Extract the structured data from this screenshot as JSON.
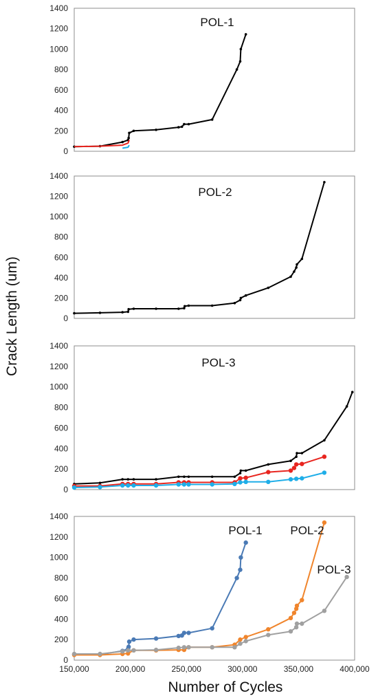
{
  "figure": {
    "ylabel": "Crack Length (um)",
    "xlabel": "Number of Cycles"
  },
  "chart_data": [
    {
      "type": "line",
      "title": "POL-1",
      "ylim": [
        0,
        1400
      ],
      "yticks": [
        "0",
        "200",
        "400",
        "600",
        "800",
        "1000",
        "1200",
        "1400"
      ],
      "xlim": [
        150000,
        400000
      ],
      "series": [
        {
          "color": "#000000",
          "marker": "small",
          "points": [
            [
              150000,
              45
            ],
            [
              173000,
              50
            ],
            [
              193000,
              90
            ],
            [
              198000,
              110
            ],
            [
              198500,
              130
            ],
            [
              199000,
              180
            ],
            [
              203000,
              200
            ],
            [
              223000,
              210
            ],
            [
              243000,
              235
            ],
            [
              246000,
              240
            ],
            [
              248000,
              265
            ],
            [
              252000,
              265
            ],
            [
              273000,
              310
            ],
            [
              295000,
              800
            ],
            [
              298000,
              880
            ],
            [
              298500,
              1000
            ],
            [
              303000,
              1145
            ]
          ]
        },
        {
          "color": "#e8251f",
          "marker": "none",
          "points": [
            [
              150000,
              45
            ],
            [
              173000,
              50
            ],
            [
              193000,
              60
            ],
            [
              198000,
              80
            ],
            [
              199000,
              110
            ]
          ]
        },
        {
          "color": "#1faee8",
          "marker": "none",
          "points": [
            [
              193000,
              30
            ],
            [
              198000,
              40
            ],
            [
              199000,
              60
            ]
          ]
        }
      ]
    },
    {
      "type": "line",
      "title": "POL-2",
      "ylim": [
        0,
        1400
      ],
      "yticks": [
        "0",
        "200",
        "400",
        "600",
        "800",
        "1000",
        "1200",
        "1400"
      ],
      "xlim": [
        150000,
        400000
      ],
      "series": [
        {
          "color": "#000000",
          "marker": "small",
          "points": [
            [
              150000,
              50
            ],
            [
              173000,
              55
            ],
            [
              193000,
              60
            ],
            [
              198000,
              65
            ],
            [
              198500,
              90
            ],
            [
              203000,
              95
            ],
            [
              223000,
              95
            ],
            [
              243000,
              95
            ],
            [
              248000,
              100
            ],
            [
              248500,
              120
            ],
            [
              252000,
              125
            ],
            [
              273000,
              125
            ],
            [
              293000,
              150
            ],
            [
              298000,
              180
            ],
            [
              298500,
              200
            ],
            [
              303000,
              225
            ],
            [
              323000,
              300
            ],
            [
              343000,
              410
            ],
            [
              346000,
              460
            ],
            [
              348000,
              500
            ],
            [
              348500,
              530
            ],
            [
              353000,
              585
            ],
            [
              373000,
              1340
            ]
          ]
        }
      ]
    },
    {
      "type": "line",
      "title": "POL-3",
      "ylim": [
        0,
        1400
      ],
      "yticks": [
        "0",
        "200",
        "400",
        "600",
        "800",
        "1000",
        "1200",
        "1400"
      ],
      "xlim": [
        150000,
        400000
      ],
      "series": [
        {
          "color": "#000000",
          "marker": "small",
          "points": [
            [
              150000,
              55
            ],
            [
              173000,
              65
            ],
            [
              193000,
              100
            ],
            [
              198000,
              100
            ],
            [
              203000,
              100
            ],
            [
              223000,
              100
            ],
            [
              243000,
              125
            ],
            [
              248000,
              125
            ],
            [
              252000,
              125
            ],
            [
              273000,
              125
            ],
            [
              293000,
              125
            ],
            [
              298000,
              160
            ],
            [
              298500,
              185
            ],
            [
              303000,
              185
            ],
            [
              323000,
              245
            ],
            [
              343000,
              280
            ],
            [
              348000,
              320
            ],
            [
              348500,
              355
            ],
            [
              353000,
              355
            ],
            [
              373000,
              480
            ],
            [
              393000,
              810
            ],
            [
              398000,
              950
            ]
          ]
        },
        {
          "color": "#e8251f",
          "marker": "dot",
          "points": [
            [
              150000,
              35
            ],
            [
              173000,
              35
            ],
            [
              193000,
              55
            ],
            [
              198000,
              55
            ],
            [
              203000,
              55
            ],
            [
              223000,
              55
            ],
            [
              243000,
              70
            ],
            [
              248000,
              70
            ],
            [
              252000,
              70
            ],
            [
              273000,
              70
            ],
            [
              293000,
              70
            ],
            [
              298000,
              110
            ],
            [
              303000,
              115
            ],
            [
              323000,
              170
            ],
            [
              343000,
              185
            ],
            [
              346000,
              210
            ],
            [
              348000,
              245
            ],
            [
              353000,
              250
            ],
            [
              373000,
              320
            ]
          ]
        },
        {
          "color": "#1faee8",
          "marker": "dot",
          "points": [
            [
              150000,
              20
            ],
            [
              173000,
              25
            ],
            [
              193000,
              40
            ],
            [
              198000,
              40
            ],
            [
              203000,
              40
            ],
            [
              223000,
              40
            ],
            [
              243000,
              50
            ],
            [
              248000,
              50
            ],
            [
              252000,
              50
            ],
            [
              273000,
              50
            ],
            [
              293000,
              55
            ],
            [
              298000,
              70
            ],
            [
              303000,
              75
            ],
            [
              323000,
              75
            ],
            [
              343000,
              100
            ],
            [
              348000,
              105
            ],
            [
              353000,
              110
            ],
            [
              373000,
              165
            ]
          ]
        }
      ]
    },
    {
      "type": "line",
      "title": "",
      "ylim": [
        0,
        1400
      ],
      "yticks": [
        "0",
        "200",
        "400",
        "600",
        "800",
        "1000",
        "1200",
        "1400"
      ],
      "xlim": [
        150000,
        400000
      ],
      "xticks": [
        "150,000",
        "200,000",
        "250,000",
        "300,000",
        "350,000",
        "400,000"
      ],
      "series": [
        {
          "name": "POL-1",
          "color": "#4a7ab5",
          "marker": "dot",
          "points": [
            [
              150000,
              55
            ],
            [
              173000,
              55
            ],
            [
              193000,
              90
            ],
            [
              198000,
              110
            ],
            [
              198500,
              130
            ],
            [
              199000,
              180
            ],
            [
              203000,
              200
            ],
            [
              223000,
              210
            ],
            [
              243000,
              235
            ],
            [
              246000,
              240
            ],
            [
              248000,
              265
            ],
            [
              252000,
              265
            ],
            [
              273000,
              310
            ],
            [
              295000,
              800
            ],
            [
              298000,
              880
            ],
            [
              298500,
              1000
            ],
            [
              303000,
              1145
            ]
          ]
        },
        {
          "name": "POL-2",
          "color": "#f0852c",
          "marker": "dot",
          "points": [
            [
              150000,
              50
            ],
            [
              173000,
              50
            ],
            [
              193000,
              60
            ],
            [
              198000,
              65
            ],
            [
              203000,
              95
            ],
            [
              223000,
              95
            ],
            [
              243000,
              100
            ],
            [
              248000,
              100
            ],
            [
              252000,
              125
            ],
            [
              273000,
              125
            ],
            [
              293000,
              150
            ],
            [
              298000,
              200
            ],
            [
              303000,
              225
            ],
            [
              323000,
              300
            ],
            [
              343000,
              410
            ],
            [
              346000,
              460
            ],
            [
              348000,
              500
            ],
            [
              348500,
              530
            ],
            [
              353000,
              585
            ],
            [
              373000,
              1340
            ]
          ]
        },
        {
          "name": "POL-3",
          "color": "#a0a0a0",
          "marker": "dot",
          "points": [
            [
              150000,
              60
            ],
            [
              173000,
              60
            ],
            [
              193000,
              85
            ],
            [
              198000,
              95
            ],
            [
              203000,
              95
            ],
            [
              223000,
              100
            ],
            [
              243000,
              120
            ],
            [
              248000,
              125
            ],
            [
              252000,
              125
            ],
            [
              273000,
              125
            ],
            [
              293000,
              125
            ],
            [
              298000,
              160
            ],
            [
              303000,
              185
            ],
            [
              323000,
              245
            ],
            [
              343000,
              280
            ],
            [
              348000,
              320
            ],
            [
              348500,
              355
            ],
            [
              353000,
              355
            ],
            [
              373000,
              480
            ],
            [
              393000,
              810
            ]
          ]
        }
      ]
    }
  ]
}
